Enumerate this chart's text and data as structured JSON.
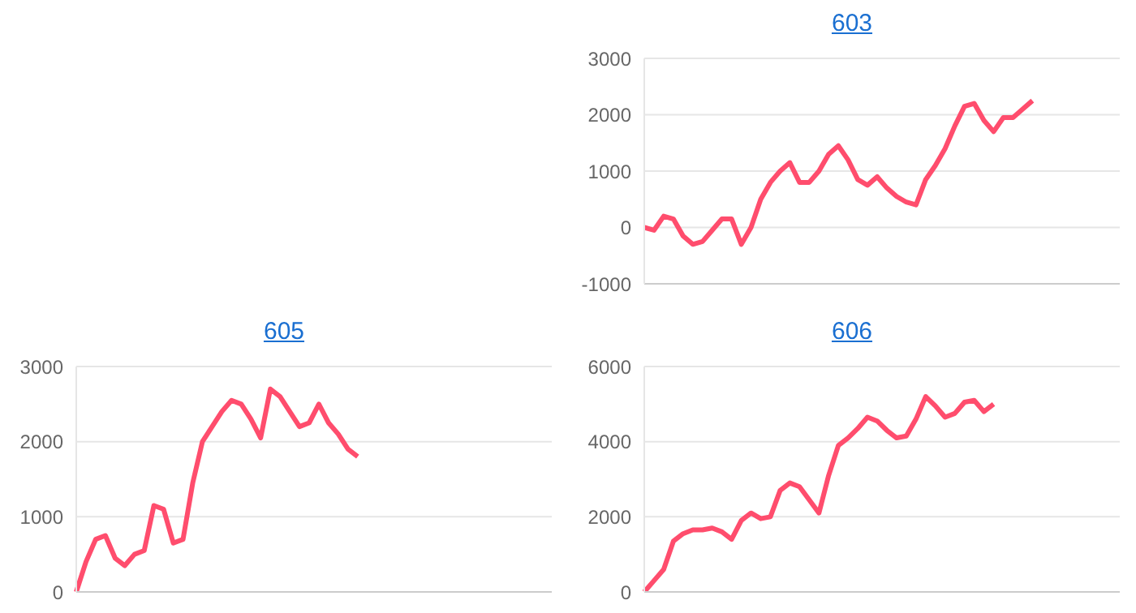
{
  "chart_data": [
    {
      "type": "line",
      "title": "603",
      "categories": [
        null,
        null,
        null,
        null,
        null,
        null,
        null,
        null,
        null,
        null,
        null,
        null,
        null,
        null,
        null,
        null,
        null,
        null,
        null,
        null,
        null,
        null,
        null,
        null,
        null,
        null,
        null,
        null,
        null,
        null,
        null,
        null,
        null,
        null,
        null,
        null,
        null,
        null,
        null,
        null,
        null,
        null,
        null,
        null,
        null,
        null,
        null,
        null,
        null,
        null
      ],
      "series": [
        {
          "color": "#ff4d6d",
          "values": [
            0,
            -50,
            200,
            150,
            -150,
            -300,
            -250,
            -50,
            150,
            150,
            -300,
            0,
            500,
            800,
            1000,
            1150,
            800,
            800,
            1000,
            1300,
            1450,
            1200,
            850,
            750,
            900,
            700,
            550,
            450,
            400,
            850,
            1100,
            1400,
            1800,
            2150,
            2200,
            1900,
            1700,
            1950,
            1950,
            2100,
            2250,
            null,
            null,
            null,
            null,
            null,
            null,
            null,
            null,
            null
          ]
        }
      ],
      "ylim": [
        -1000,
        3000
      ],
      "yticks": [
        -1000,
        0,
        1000,
        2000,
        3000
      ],
      "grid": "y",
      "tick_labels": "y",
      "legend": false,
      "marker": "none",
      "line_style": "solid"
    },
    {
      "type": "line",
      "title": "605",
      "categories": [
        null,
        null,
        null,
        null,
        null,
        null,
        null,
        null,
        null,
        null,
        null,
        null,
        null,
        null,
        null,
        null,
        null,
        null,
        null,
        null,
        null,
        null,
        null,
        null,
        null,
        null,
        null,
        null,
        null,
        null,
        null,
        null,
        null,
        null,
        null,
        null,
        null,
        null,
        null,
        null,
        null,
        null,
        null,
        null,
        null,
        null,
        null,
        null,
        null,
        null
      ],
      "series": [
        {
          "color": "#ff4d6d",
          "values": [
            0,
            400,
            700,
            750,
            450,
            350,
            500,
            550,
            1150,
            1100,
            650,
            700,
            1450,
            2000,
            2200,
            2400,
            2550,
            2500,
            2300,
            2050,
            2700,
            2600,
            2400,
            2200,
            2250,
            2500,
            2250,
            2100,
            1900,
            1800,
            null,
            null,
            null,
            null,
            null,
            null,
            null,
            null,
            null,
            null,
            null,
            null,
            null,
            null,
            null,
            null,
            null,
            null,
            null,
            null
          ]
        }
      ],
      "ylim": [
        0,
        3000
      ],
      "yticks": [
        0,
        1000,
        2000,
        3000
      ],
      "grid": "y",
      "tick_labels": "y",
      "legend": false,
      "marker": "none",
      "line_style": "solid"
    },
    {
      "type": "line",
      "title": "606",
      "categories": [
        null,
        null,
        null,
        null,
        null,
        null,
        null,
        null,
        null,
        null,
        null,
        null,
        null,
        null,
        null,
        null,
        null,
        null,
        null,
        null,
        null,
        null,
        null,
        null,
        null,
        null,
        null,
        null,
        null,
        null,
        null,
        null,
        null,
        null,
        null,
        null,
        null,
        null,
        null,
        null,
        null,
        null,
        null,
        null,
        null,
        null,
        null,
        null,
        null,
        null
      ],
      "series": [
        {
          "color": "#ff4d6d",
          "values": [
            0,
            300,
            600,
            1350,
            1550,
            1650,
            1650,
            1700,
            1600,
            1400,
            1900,
            2100,
            1950,
            2000,
            2700,
            2900,
            2800,
            2450,
            2100,
            3100,
            3900,
            4100,
            4350,
            4650,
            4550,
            4300,
            4100,
            4150,
            4600,
            5200,
            4950,
            4650,
            4750,
            5050,
            5100,
            4800,
            5000,
            null,
            null,
            null,
            null,
            null,
            null,
            null,
            null,
            null,
            null,
            null,
            null,
            null
          ]
        }
      ],
      "ylim": [
        0,
        6000
      ],
      "yticks": [
        0,
        2000,
        4000,
        6000
      ],
      "grid": "y",
      "tick_labels": "y",
      "legend": false,
      "marker": "none",
      "line_style": "solid"
    }
  ]
}
